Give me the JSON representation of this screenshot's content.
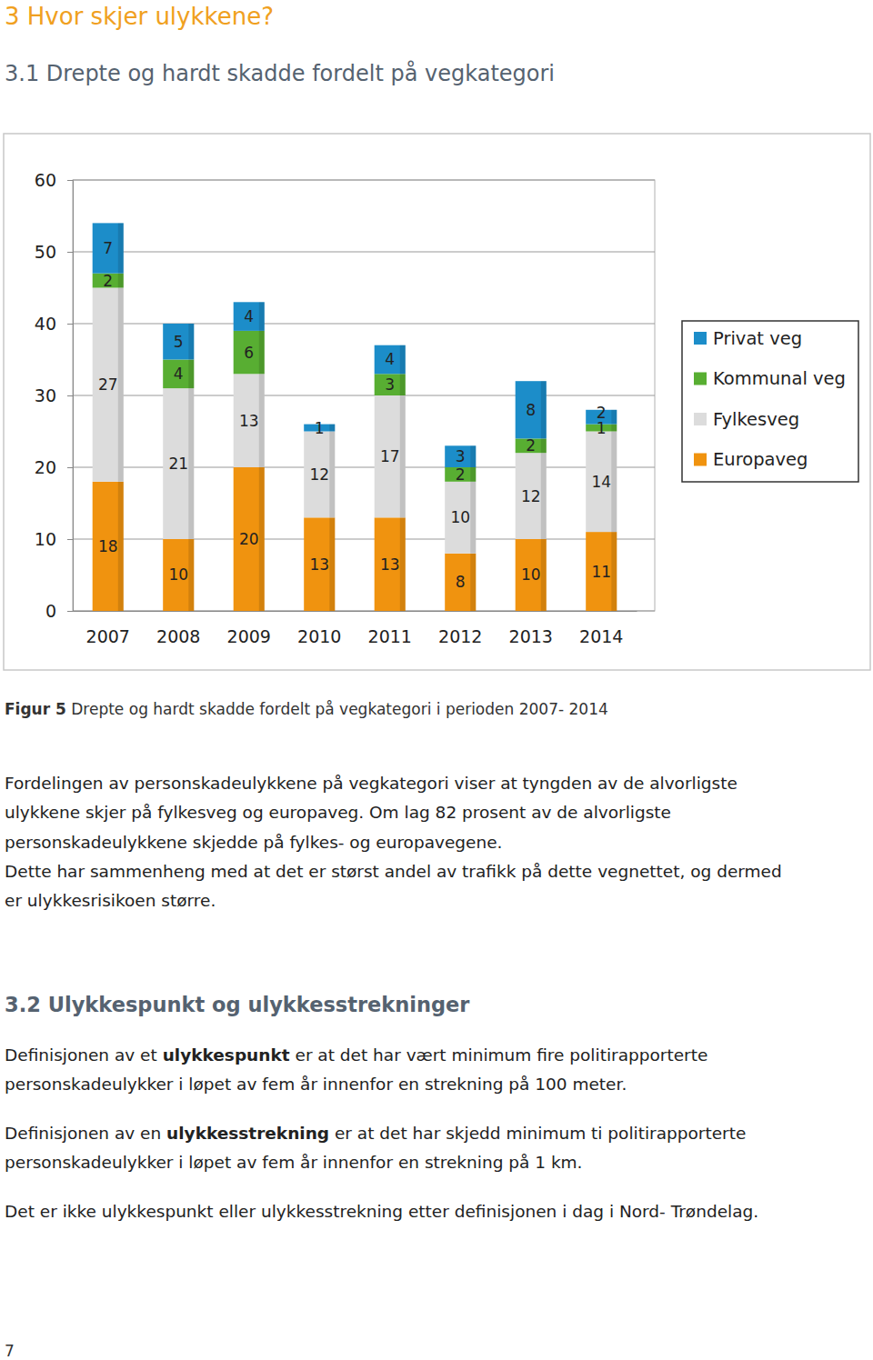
{
  "heading": "3 Hvor skjer ulykkene?",
  "subheading": "3.1 Drepte og hardt skadde fordelt på vegkategori",
  "chart_data": {
    "type": "bar",
    "stacked": true,
    "data_labels": true,
    "grid": true,
    "legend": "right",
    "categories": [
      "2007",
      "2008",
      "2009",
      "2010",
      "2011",
      "2012",
      "2013",
      "2014"
    ],
    "series": [
      {
        "name": "Europaveg",
        "color": "#f0930f",
        "values": [
          18,
          10,
          20,
          13,
          13,
          8,
          10,
          11
        ]
      },
      {
        "name": "Fylkesveg",
        "color": "#dcdcdc",
        "values": [
          27,
          21,
          13,
          12,
          17,
          10,
          12,
          14
        ]
      },
      {
        "name": "Kommunal veg",
        "color": "#58ae32",
        "values": [
          2,
          4,
          6,
          null,
          3,
          2,
          2,
          1
        ]
      },
      {
        "name": "Privat veg",
        "color": "#1c8dc9",
        "values": [
          7,
          5,
          4,
          1,
          4,
          3,
          8,
          2
        ]
      }
    ],
    "ylim": [
      0,
      60
    ],
    "yticks": [
      0,
      10,
      20,
      30,
      40,
      50,
      60
    ]
  },
  "caption": [
    {
      "strong": "Figur 5"
    },
    " Drepte og hardt skadde fordelt på vegkategori i perioden 2007- 2014"
  ],
  "body": [
    [
      "Fordelingen av personskadeulykkene på vegkategori viser at tyngden av de alvorligste"
    ],
    [
      "ulykkene skjer på fylkesveg og europaveg. Om lag 82 prosent av de alvorligste"
    ],
    [
      "personskadeulykkene skjedde på fylkes- og europavegene."
    ],
    [
      "Dette har sammenheng med at det er størst andel av trafikk på dette vegnettet, og dermed"
    ],
    [
      "er ulykkesrisikoen større."
    ]
  ],
  "section": "3.2 Ulykkespunkt og ulykkesstrekninger",
  "section_body": [
    [
      [
        "Definisjonen av et ",
        {
          "strong": "ulykkespunkt"
        },
        " er at det har vært minimum fire politirapporterte"
      ],
      [
        "personskadeulykker i løpet av fem år innenfor en strekning på 100 meter."
      ]
    ],
    [
      [
        "Definisjonen av en ",
        {
          "strong": "ulykkesstrekning"
        },
        " er at det har skjedd minimum ti politirapporterte"
      ],
      [
        "personskadeulykker i løpet av fem år innenfor en strekning på 1 km."
      ]
    ],
    [
      [
        "Det er ikke ulykkespunkt eller ulykkesstrekning etter definisjonen i dag i Nord- Trøndelag."
      ]
    ]
  ],
  "page_number": "7"
}
